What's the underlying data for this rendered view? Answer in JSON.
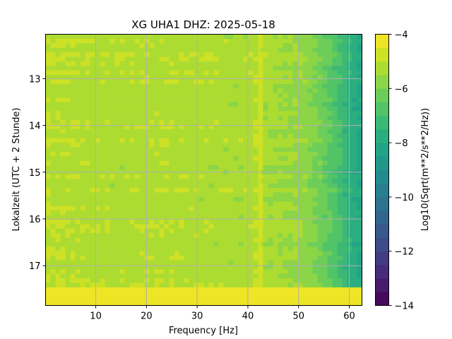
{
  "chart_data": {
    "type": "heatmap",
    "title": "XG UHA1  DHZ: 2025-05-18",
    "xlabel": "Frequency [Hz]",
    "ylabel": "Lokalzeit (UTC + 2 Stunde)",
    "xlim": [
      0.1,
      62.5
    ],
    "ylim": [
      17.85,
      12.05
    ],
    "xticks": [
      10,
      20,
      30,
      40,
      50,
      60
    ],
    "xtick_labels": [
      "10",
      "20",
      "30",
      "40",
      "50",
      "60"
    ],
    "yticks": [
      13,
      14,
      15,
      16,
      17
    ],
    "ytick_labels": [
      "13",
      "14",
      "15",
      "16",
      "17"
    ],
    "grid": true,
    "colormap": "viridis",
    "colorbar": {
      "label": "Log10(Sqrt(m**2/s**2/Hz))",
      "range": [
        -14,
        -4
      ],
      "ticks": [
        -4,
        -6,
        -8,
        -10,
        -12,
        -14
      ],
      "tick_labels": [
        "−4",
        "−6",
        "−8",
        "−10",
        "−12",
        "−14"
      ],
      "levels": 20
    },
    "frequency_profile": {
      "frequency_hz": [
        0.1,
        5,
        10,
        15,
        20,
        25,
        30,
        35,
        40,
        41.5,
        42.3,
        43,
        45,
        48,
        50,
        52,
        55,
        58,
        60,
        62.5
      ],
      "log10_amplitude": [
        -5.0,
        -5.1,
        -5.2,
        -5.2,
        -5.15,
        -5.15,
        -5.2,
        -5.25,
        -5.3,
        -5.1,
        -4.7,
        -5.3,
        -5.4,
        -5.5,
        -5.6,
        -5.8,
        -6.3,
        -7.0,
        -7.6,
        -8.2
      ]
    },
    "features": {
      "spectral_line_hz": 42.3,
      "no_data_period_hours": [
        17.45,
        17.85
      ],
      "no_data_value": -4
    }
  }
}
